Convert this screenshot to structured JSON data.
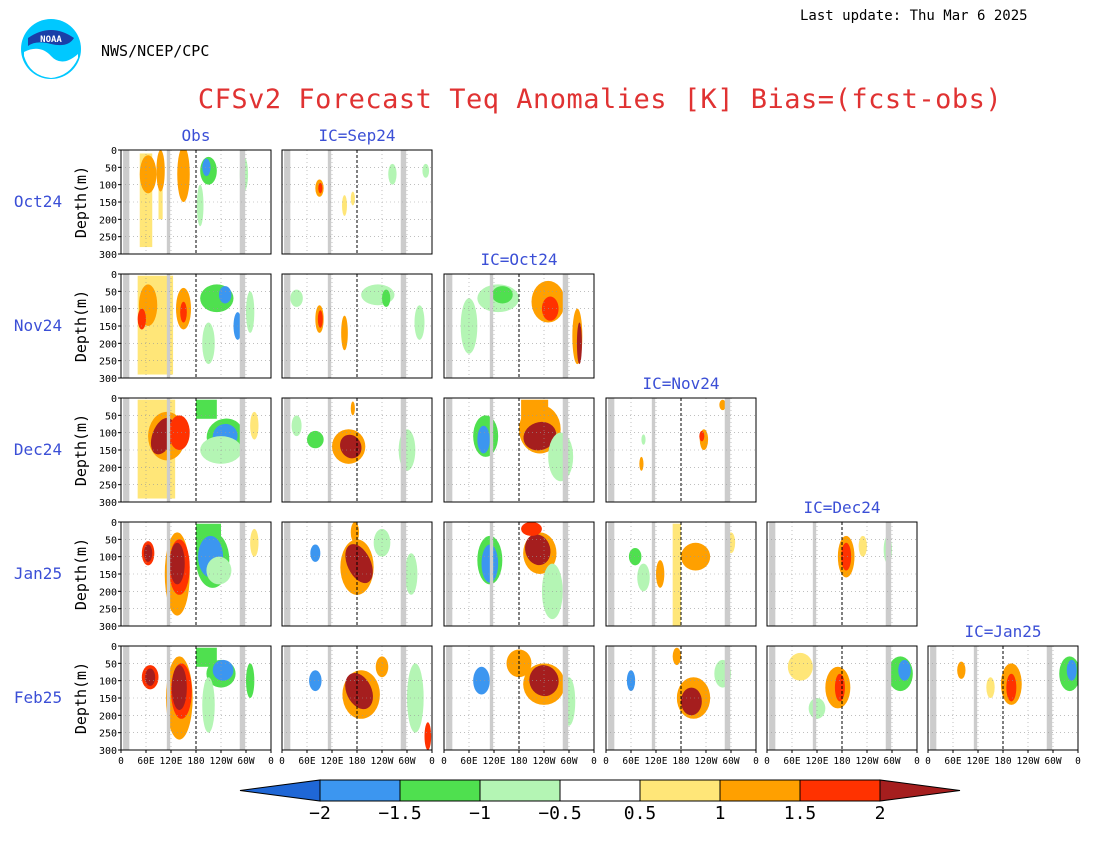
{
  "header": {
    "last_update": "Last update: Thu Mar 6 2025",
    "agency": "NWS/NCEP/CPC",
    "logo_text": "NOAA",
    "title": "CFSv2 Forecast Teq Anomalies [K] Bias=(fcst-obs)"
  },
  "colors": {
    "title": "#e03232",
    "label_blue": "#3b4fd6",
    "land_gray": "#cccccc",
    "levels": {
      "neg2": "#1f67d6",
      "neg1_5": "#3c96f0",
      "neg1": "#4fe04f",
      "neg0_5": "#b4f5b4",
      "pos0_5": "#ffe678",
      "pos1": "#ffa000",
      "pos1_5": "#ff3200",
      "pos2": "#a51e1e"
    }
  },
  "chart_data": {
    "type": "heatmap",
    "description": "Panel matrix of equatorial Pacific temperature anomaly longitude-depth sections",
    "columns": [
      "Obs",
      "IC=Sep24",
      "IC=Oct24",
      "IC=Nov24",
      "IC=Dec24",
      "IC=Jan25"
    ],
    "rows": [
      "Oct24",
      "Nov24",
      "Dec24",
      "Jan25",
      "Feb25"
    ],
    "ylabel": "Depth(m)",
    "ylim": [
      300,
      0
    ],
    "y_ticks": [
      "0",
      "50",
      "100",
      "150",
      "200",
      "250",
      "300"
    ],
    "x_ticks": [
      "0",
      "60E",
      "120E",
      "180",
      "120W",
      "60W",
      "0"
    ],
    "xlim_degrees_east": [
      0,
      360
    ],
    "colorbar": {
      "levels": [
        -2,
        -1.5,
        -1,
        -0.5,
        0.5,
        1,
        1.5,
        2
      ],
      "labels": [
        "−2",
        "−1.5",
        "−1",
        "−0.5",
        "0.5",
        "1",
        "1.5",
        "2"
      ]
    },
    "panels": {
      "Oct24": [
        "obs",
        "Sep24"
      ],
      "Nov24": [
        "obs",
        "Sep24",
        "Oct24"
      ],
      "Dec24": [
        "obs",
        "Sep24",
        "Oct24",
        "Nov24"
      ],
      "Jan25": [
        "obs",
        "Sep24",
        "Oct24",
        "Nov24",
        "Dec24"
      ],
      "Feb25": [
        "obs",
        "Sep24",
        "Oct24",
        "Nov24",
        "Dec24",
        "Jan25"
      ]
    }
  }
}
